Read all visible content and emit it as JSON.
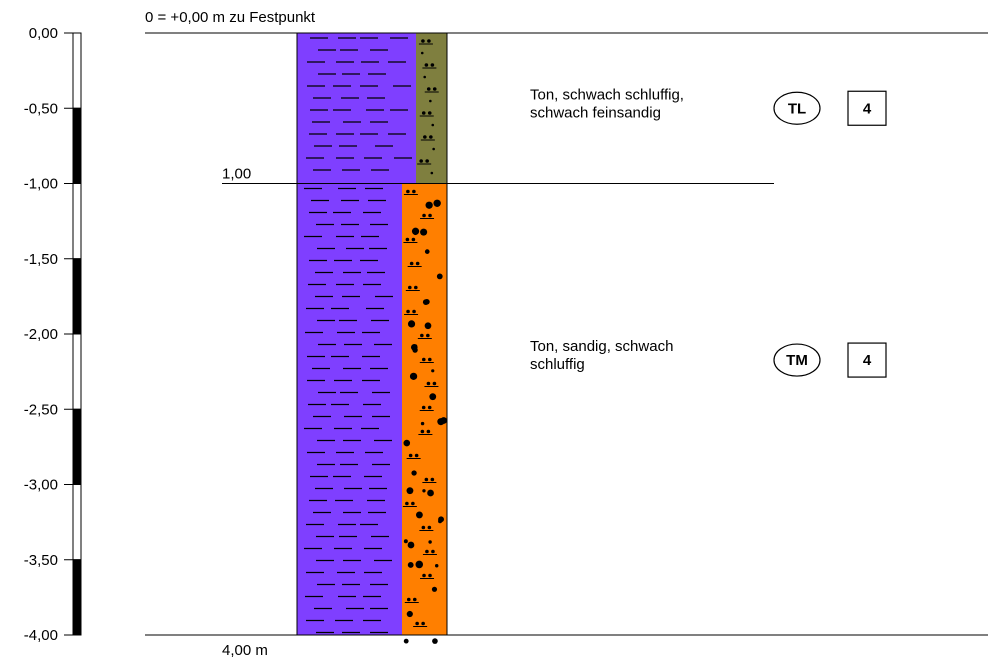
{
  "header": {
    "reference": "0 = +0,00 m zu Festpunkt"
  },
  "scale": {
    "min_m": 0.0,
    "max_m": 4.0,
    "step_m": 0.5,
    "tick_labels": [
      "0,00",
      "-0,50",
      "-1,00",
      "-1,50",
      "-2,00",
      "-2,50",
      "-3,00",
      "-3,50",
      "-4,00"
    ]
  },
  "layers": [
    {
      "top_m": 0.0,
      "bottom_m": 1.0,
      "description_lines": [
        "Ton, schwach schluffig,",
        "schwach feinsandig"
      ],
      "soil_class": "TL",
      "rating": "4",
      "main_color": "#7f3fff",
      "secondary_color": "#7f7f3f",
      "secondary_pattern": "schluff-feinsand"
    },
    {
      "top_m": 1.0,
      "bottom_m": 4.0,
      "description_lines": [
        "Ton, sandig, schwach",
        "schluffig"
      ],
      "soil_class": "TM",
      "rating": "4",
      "main_color": "#7f3fff",
      "secondary_color": "#ff7f00",
      "secondary_pattern": "sand-schluff"
    }
  ],
  "depth_labels": [
    {
      "depth_m": 1.0,
      "label": "1,00"
    },
    {
      "depth_m": 4.0,
      "label": "4,00 m"
    }
  ]
}
